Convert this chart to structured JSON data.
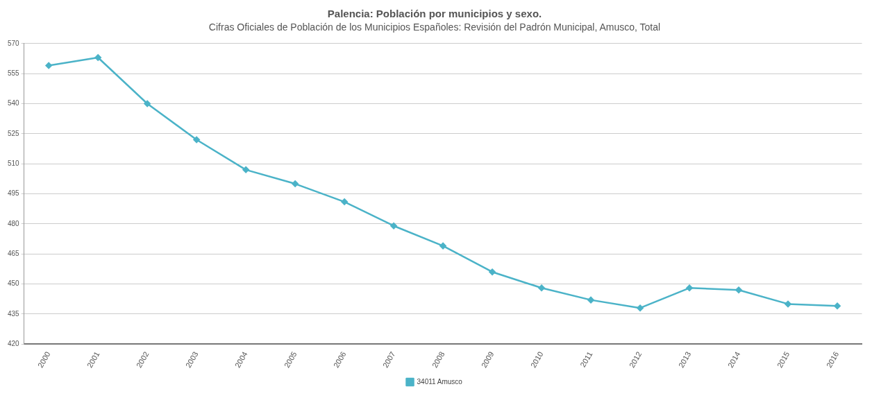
{
  "chart_data": {
    "type": "line",
    "title": "Palencia: Población por municipios y sexo.",
    "subtitle": "Cifras Oficiales de Población de los Municipios Españoles: Revisión del Padrón Municipal, Amusco, Total",
    "categories": [
      "2000",
      "2001",
      "2002",
      "2003",
      "2004",
      "2005",
      "2006",
      "2007",
      "2008",
      "2009",
      "2010",
      "2011",
      "2012",
      "2013",
      "2014",
      "2015",
      "2016"
    ],
    "series": [
      {
        "name": "34011 Amusco",
        "color": "#4bb3c8",
        "values": [
          559,
          563,
          540,
          522,
          507,
          500,
          491,
          479,
          469,
          456,
          448,
          442,
          438,
          448,
          447,
          440,
          439
        ]
      }
    ],
    "ylim": [
      420,
      570
    ],
    "yticks": [
      420,
      435,
      450,
      465,
      480,
      495,
      510,
      525,
      540,
      555,
      570
    ],
    "grid": "y",
    "legend": "bottom",
    "marker": "diamond",
    "line_style": "solid"
  }
}
